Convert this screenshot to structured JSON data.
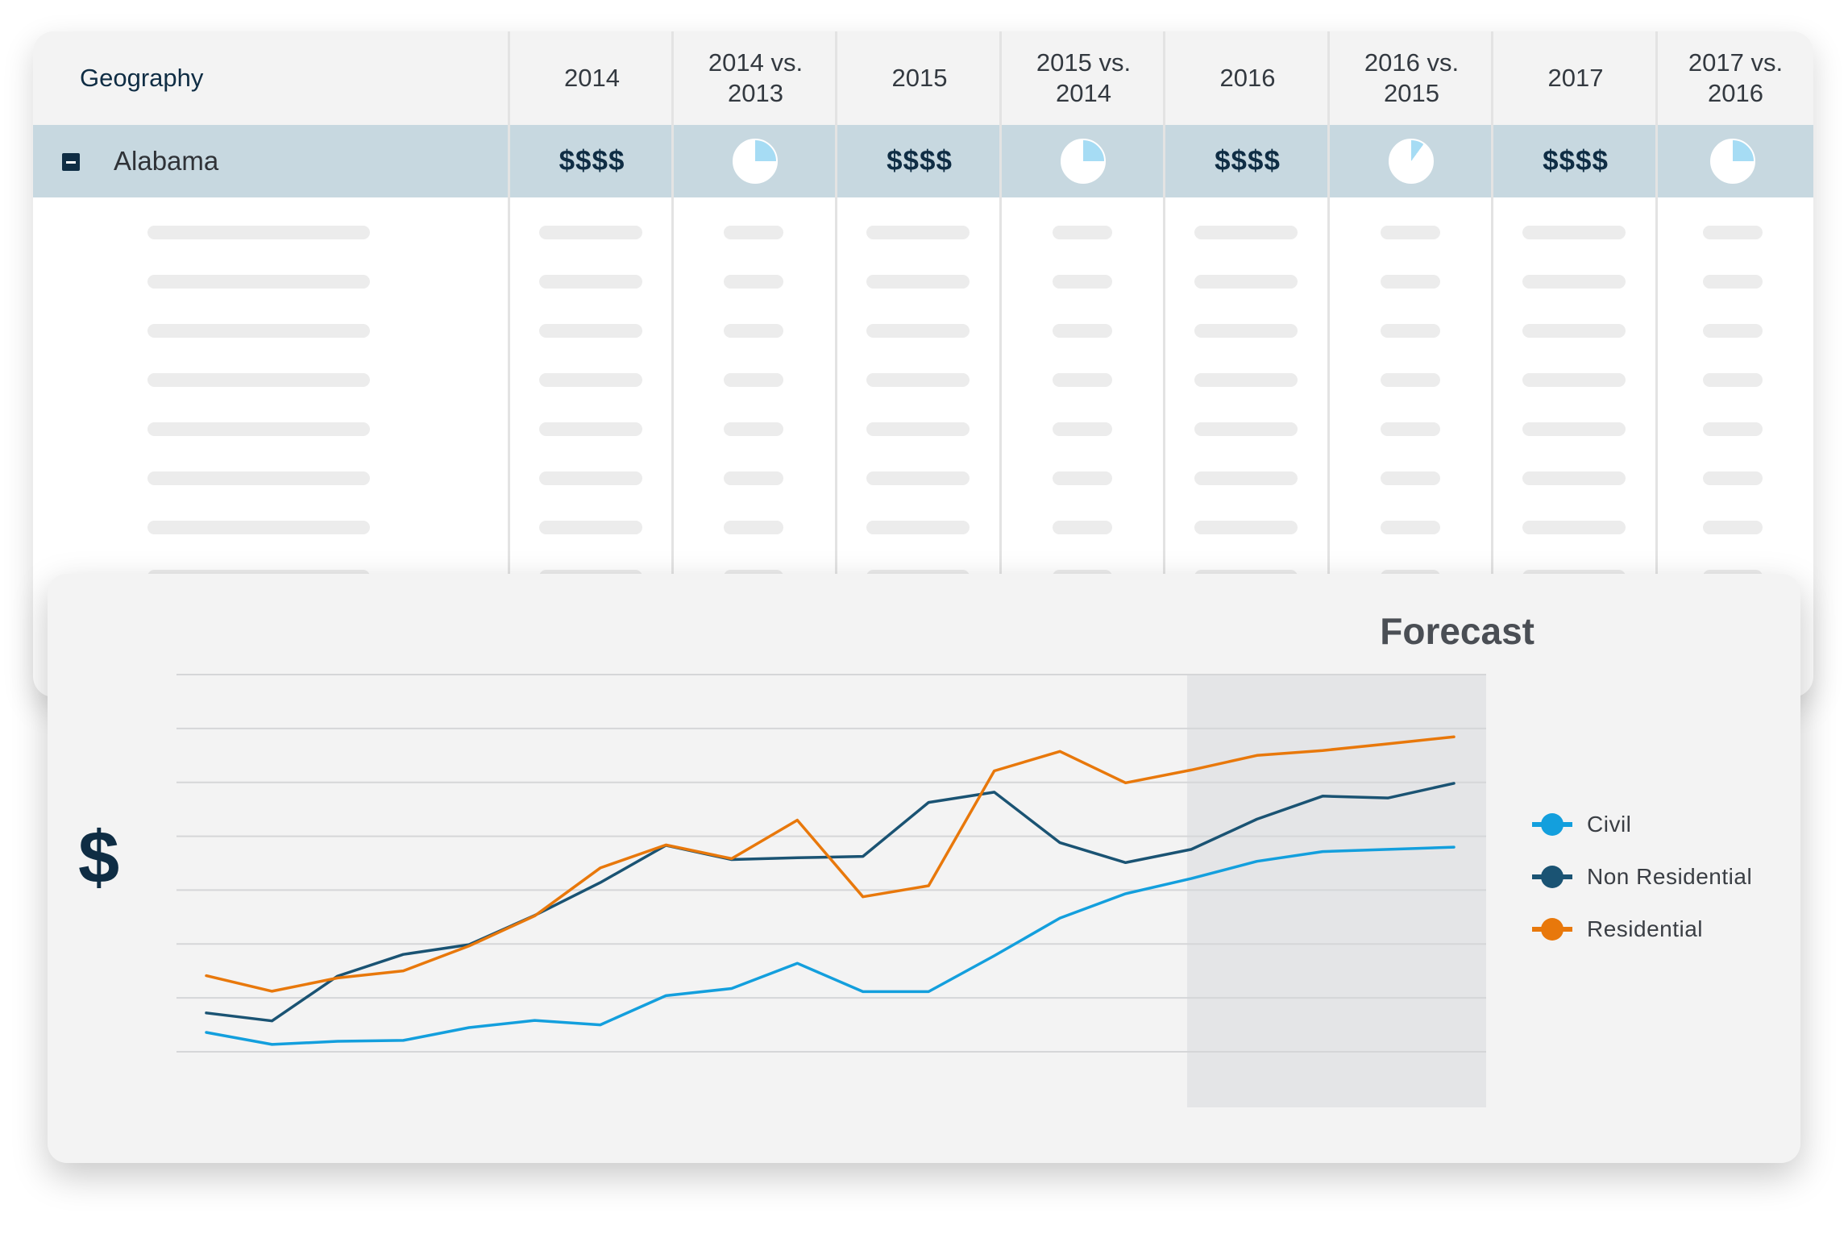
{
  "table": {
    "header_geography": "Geography",
    "columns": [
      "2014",
      "2014 vs.\n2013",
      "2015",
      "2015 vs.\n2014",
      "2016",
      "2016 vs.\n2015",
      "2017",
      "2017 vs.\n2016"
    ],
    "row": {
      "geography": "Alabama",
      "values": [
        "$$$$",
        "$$$$",
        "$$$$",
        "$$$$"
      ],
      "pie_fractions": [
        0.25,
        0.25,
        0.1,
        0.25
      ]
    },
    "colors": {
      "header_bg": "#f3f3f3",
      "row_bg": "#c7d8e0",
      "pie_accent": "#a6dcf4",
      "text": "#0f2d44"
    }
  },
  "chart_data": {
    "type": "line",
    "title": "",
    "ylabel": "$",
    "xlabel": "",
    "annotation": "Forecast",
    "forecast_start_index": 15,
    "ylim": [
      0,
      8
    ],
    "grid": true,
    "legend_position": "right",
    "x": [
      0,
      1,
      2,
      3,
      4,
      5,
      6,
      7,
      8,
      9,
      10,
      11,
      12,
      13,
      14,
      15,
      16,
      17,
      18,
      19
    ],
    "series": [
      {
        "name": "Civil",
        "color": "#139fdd",
        "values": [
          0.2,
          -0.07,
          0.0,
          0.02,
          0.31,
          0.47,
          0.37,
          1.03,
          1.19,
          1.76,
          1.12,
          1.12,
          1.93,
          2.78,
          3.33,
          3.67,
          4.06,
          4.28,
          4.33,
          4.38
        ]
      },
      {
        "name": "Non Residential",
        "color": "#1a5373",
        "values": [
          0.64,
          0.46,
          1.47,
          1.96,
          2.18,
          2.84,
          3.58,
          4.42,
          4.1,
          4.14,
          4.17,
          5.39,
          5.62,
          4.48,
          4.03,
          4.33,
          5.01,
          5.53,
          5.49,
          5.82
        ]
      },
      {
        "name": "Residential",
        "color": "#e8780b",
        "values": [
          1.48,
          1.13,
          1.43,
          1.59,
          2.15,
          2.83,
          3.91,
          4.43,
          4.12,
          4.99,
          3.26,
          3.51,
          6.1,
          6.54,
          5.83,
          6.12,
          6.45,
          6.56,
          6.71,
          6.87
        ]
      }
    ]
  }
}
